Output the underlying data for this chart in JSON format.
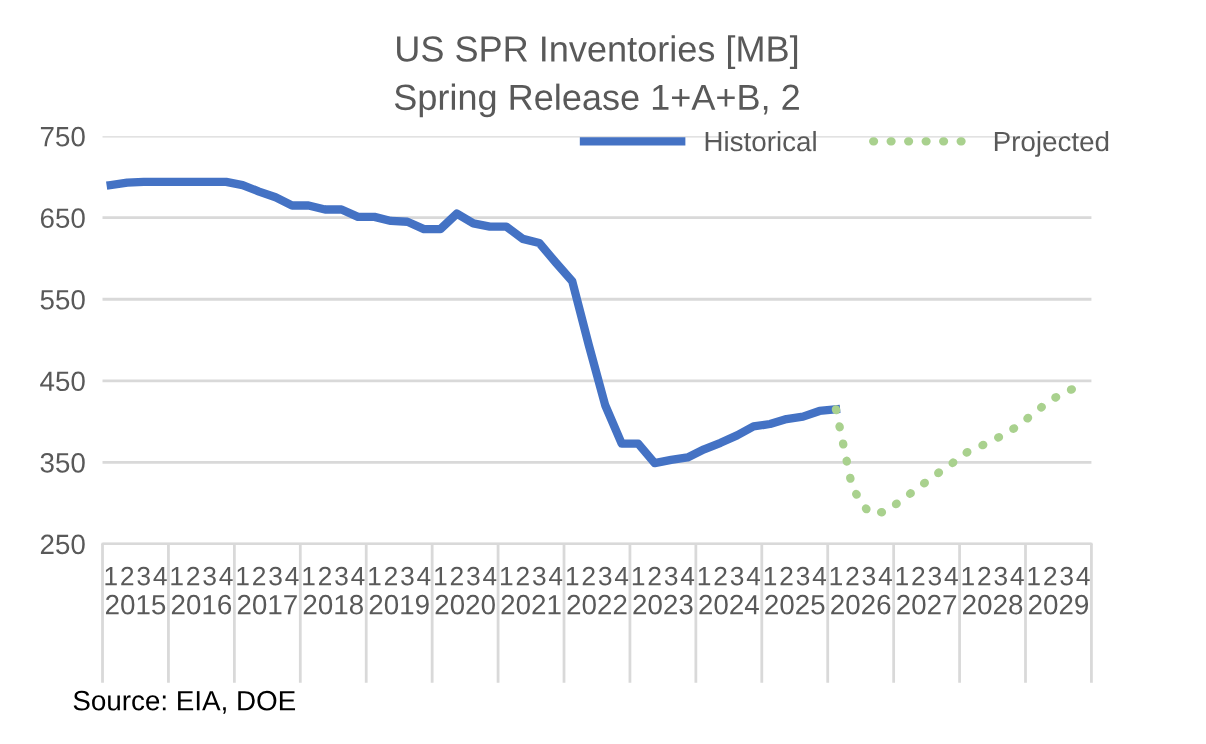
{
  "chart_data": {
    "type": "line",
    "title": "US SPR Inventories [MB]",
    "subtitle": "Spring Release 1+A+B, 2",
    "categories": [
      "1",
      "2",
      "3",
      "4",
      "1",
      "2",
      "3",
      "4",
      "1",
      "2",
      "3",
      "4",
      "1",
      "2",
      "3",
      "4",
      "1",
      "2",
      "3",
      "4",
      "1",
      "2",
      "3",
      "4",
      "1",
      "2",
      "3",
      "4",
      "1",
      "2",
      "3",
      "4",
      "1",
      "2",
      "3",
      "4",
      "1",
      "2",
      "3",
      "4",
      "1",
      "2",
      "3",
      "4",
      "1",
      "2",
      "3",
      "4",
      "1",
      "2",
      "3",
      "4",
      "1",
      "2",
      "3",
      "4",
      "1",
      "2",
      "3",
      "4"
    ],
    "series": [
      {
        "name": "Historical",
        "color": "#4472c4",
        "line_style": "solid",
        "values": [
          690,
          693,
          694,
          694,
          694,
          694,
          694,
          694,
          690,
          682,
          675,
          665,
          665,
          660,
          660,
          651,
          651,
          646,
          645,
          636,
          636,
          655,
          643,
          639,
          639,
          624,
          619,
          595,
          572,
          494,
          420,
          373,
          373,
          349,
          353,
          356,
          366,
          374,
          383,
          394,
          397,
          403,
          406,
          413,
          415,
          null,
          null,
          null,
          null,
          null,
          null,
          null,
          null,
          null,
          null,
          null,
          null,
          null,
          null,
          null
        ]
      },
      {
        "name": "Projected",
        "color": "#a9d18e",
        "line_style": "dotted",
        "values": [
          null,
          null,
          null,
          null,
          null,
          null,
          null,
          null,
          null,
          null,
          null,
          null,
          null,
          null,
          null,
          null,
          null,
          null,
          null,
          null,
          null,
          null,
          null,
          null,
          null,
          null,
          null,
          null,
          null,
          null,
          null,
          null,
          null,
          null,
          null,
          null,
          null,
          null,
          null,
          null,
          null,
          null,
          null,
          null,
          415,
          318,
          288,
          289,
          304,
          319,
          334,
          348,
          363,
          372,
          382,
          394,
          410,
          426,
          437,
          445
        ]
      }
    ],
    "ylim": [
      250,
      750
    ],
    "yticks": [
      250,
      350,
      450,
      550,
      650,
      750
    ],
    "grid": "y",
    "legend": "top right",
    "marker": "none",
    "annotations": [
      "2015",
      "2016",
      "2017",
      "2018",
      "2019",
      "2020",
      "2021",
      "2022",
      "2023",
      "2024",
      "2025",
      "2026",
      "2027",
      "2028",
      "2029",
      "Source: EIA, DOE"
    ]
  }
}
